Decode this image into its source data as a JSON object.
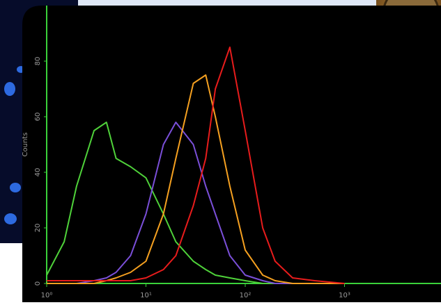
{
  "chart_data": {
    "type": "line",
    "y_label": "Counts",
    "x_log": true,
    "x": [
      1,
      1.5,
      2,
      3,
      4,
      5,
      7,
      10,
      15,
      20,
      30,
      40,
      50,
      70,
      100,
      150,
      200,
      300,
      500,
      1000
    ],
    "series": [
      {
        "color": "#4fd23a",
        "values": [
          3,
          15,
          35,
          55,
          58,
          45,
          42,
          38,
          25,
          15,
          8,
          5,
          3,
          2,
          1,
          0,
          0,
          0,
          0,
          0
        ]
      },
      {
        "color": "#7a4fd8",
        "values": [
          0,
          0,
          0,
          1,
          2,
          4,
          10,
          25,
          50,
          58,
          50,
          35,
          25,
          10,
          3,
          1,
          0,
          0,
          0,
          0
        ]
      },
      {
        "color": "#f5a020",
        "values": [
          0,
          0,
          0,
          0,
          1,
          2,
          4,
          8,
          25,
          45,
          72,
          75,
          60,
          35,
          12,
          3,
          1,
          0,
          0,
          0
        ]
      },
      {
        "color": "#e81c1c",
        "values": [
          1,
          1,
          1,
          1,
          1,
          1,
          1,
          2,
          5,
          10,
          28,
          45,
          70,
          85,
          55,
          20,
          8,
          2,
          1,
          0
        ]
      }
    ],
    "xlim": [
      1,
      10000
    ],
    "ylim": [
      0,
      100
    ],
    "xticks": [
      {
        "value": 1,
        "label": "10⁰"
      },
      {
        "value": 10,
        "label": "10¹"
      },
      {
        "value": 100,
        "label": "10²"
      },
      {
        "value": 1000,
        "label": "10³"
      }
    ],
    "yticks": [
      0,
      20,
      40,
      60,
      80
    ]
  }
}
